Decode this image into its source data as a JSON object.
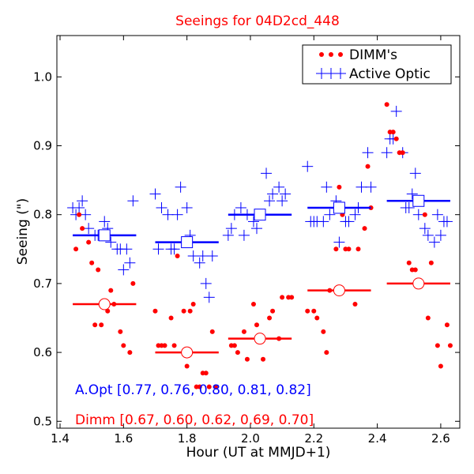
{
  "chart_data": {
    "type": "scatter",
    "title": "Seeings for 04D2cd_448",
    "xlabel": "Hour (UT at MMJD+1)",
    "ylabel": "Seeing (\")",
    "xlim": [
      1.39,
      2.66
    ],
    "ylim": [
      0.49,
      1.06
    ],
    "x_ticks": [
      "1.4",
      "1.6",
      "1.8",
      "2.0",
      "2.2",
      "2.4",
      "2.6"
    ],
    "y_ticks": [
      "0.5",
      "0.6",
      "0.7",
      "0.8",
      "0.9",
      "1.0"
    ],
    "grid": false,
    "legend_position": "top-right",
    "colors": {
      "dimm": "#ff0000",
      "aopt": "#0000ff",
      "title": "#ff0000"
    },
    "summary_aopt": "A.Opt [0.77, 0.76, 0.80, 0.81, 0.82]",
    "summary_dimm": "Dimm [0.67, 0.60, 0.62, 0.69, 0.70]",
    "series": [
      {
        "name": "DIMM's",
        "marker": "dot",
        "color": "#ff0000",
        "x": [
          1.45,
          1.46,
          1.47,
          1.49,
          1.5,
          1.51,
          1.52,
          1.53,
          1.55,
          1.56,
          1.57,
          1.59,
          1.6,
          1.62,
          1.63,
          1.7,
          1.71,
          1.72,
          1.73,
          1.75,
          1.76,
          1.77,
          1.79,
          1.8,
          1.81,
          1.82,
          1.83,
          1.84,
          1.85,
          1.86,
          1.87,
          1.88,
          1.89,
          1.94,
          1.95,
          1.96,
          1.98,
          1.99,
          2.01,
          2.02,
          2.03,
          2.04,
          2.06,
          2.07,
          2.09,
          2.1,
          2.12,
          2.13,
          2.18,
          2.2,
          2.21,
          2.23,
          2.24,
          2.25,
          2.27,
          2.28,
          2.29,
          2.3,
          2.31,
          2.33,
          2.34,
          2.36,
          2.37,
          2.38,
          2.43,
          2.44,
          2.45,
          2.46,
          2.47,
          2.48,
          2.5,
          2.51,
          2.52,
          2.55,
          2.56,
          2.57,
          2.59,
          2.6,
          2.62,
          2.63
        ],
        "y": [
          0.75,
          0.8,
          0.78,
          0.76,
          0.73,
          0.64,
          0.72,
          0.64,
          0.66,
          0.69,
          0.67,
          0.63,
          0.61,
          0.6,
          0.7,
          0.66,
          0.61,
          0.61,
          0.61,
          0.65,
          0.61,
          0.74,
          0.66,
          0.58,
          0.66,
          0.67,
          0.55,
          0.55,
          0.57,
          0.57,
          0.55,
          0.63,
          0.55,
          0.61,
          0.61,
          0.6,
          0.63,
          0.59,
          0.67,
          0.64,
          0.62,
          0.59,
          0.65,
          0.66,
          0.62,
          0.68,
          0.68,
          0.68,
          0.66,
          0.66,
          0.65,
          0.63,
          0.6,
          0.69,
          0.75,
          0.84,
          0.8,
          0.75,
          0.75,
          0.67,
          0.75,
          0.78,
          0.87,
          0.81,
          0.96,
          0.92,
          0.92,
          0.91,
          0.89,
          0.89,
          0.73,
          0.72,
          0.72,
          0.8,
          0.65,
          0.73,
          0.61,
          0.58,
          0.64,
          0.61
        ]
      },
      {
        "name": "Active Optic",
        "marker": "plus",
        "color": "#0000ff",
        "x": [
          1.44,
          1.45,
          1.46,
          1.47,
          1.48,
          1.49,
          1.51,
          1.52,
          1.54,
          1.55,
          1.56,
          1.58,
          1.59,
          1.6,
          1.61,
          1.62,
          1.63,
          1.7,
          1.71,
          1.72,
          1.74,
          1.75,
          1.76,
          1.77,
          1.78,
          1.8,
          1.81,
          1.82,
          1.84,
          1.85,
          1.86,
          1.87,
          1.88,
          1.93,
          1.94,
          1.95,
          1.97,
          1.98,
          1.99,
          2.01,
          2.02,
          2.03,
          2.05,
          2.06,
          2.07,
          2.09,
          2.1,
          2.11,
          2.18,
          2.19,
          2.2,
          2.21,
          2.23,
          2.24,
          2.25,
          2.27,
          2.28,
          2.29,
          2.3,
          2.31,
          2.33,
          2.34,
          2.35,
          2.37,
          2.38,
          2.43,
          2.44,
          2.45,
          2.46,
          2.48,
          2.49,
          2.5,
          2.51,
          2.52,
          2.53,
          2.55,
          2.56,
          2.58,
          2.59,
          2.6,
          2.61,
          2.62
        ],
        "y": [
          0.81,
          0.8,
          0.81,
          0.82,
          0.8,
          0.78,
          0.77,
          0.77,
          0.79,
          0.78,
          0.76,
          0.75,
          0.75,
          0.72,
          0.75,
          0.73,
          0.82,
          0.83,
          0.75,
          0.81,
          0.8,
          0.75,
          0.75,
          0.8,
          0.84,
          0.81,
          0.77,
          0.74,
          0.73,
          0.74,
          0.7,
          0.68,
          0.74,
          0.77,
          0.78,
          0.8,
          0.81,
          0.77,
          0.8,
          0.79,
          0.78,
          0.8,
          0.86,
          0.82,
          0.83,
          0.84,
          0.82,
          0.83,
          0.87,
          0.79,
          0.79,
          0.79,
          0.79,
          0.84,
          0.8,
          0.82,
          0.76,
          0.81,
          0.79,
          0.79,
          0.8,
          0.81,
          0.84,
          0.89,
          0.84,
          0.89,
          0.91,
          0.91,
          0.95,
          0.89,
          0.81,
          0.81,
          0.83,
          0.86,
          0.8,
          0.78,
          0.77,
          0.76,
          0.8,
          0.77,
          0.79,
          0.79
        ]
      }
    ],
    "bins": [
      {
        "x_center": 1.54,
        "x_range": [
          1.44,
          1.64
        ],
        "aopt_mean": 0.77,
        "dimm_mean": 0.67
      },
      {
        "x_center": 1.8,
        "x_range": [
          1.7,
          1.9
        ],
        "aopt_mean": 0.76,
        "dimm_mean": 0.6
      },
      {
        "x_center": 2.03,
        "x_range": [
          1.93,
          2.13
        ],
        "aopt_mean": 0.8,
        "dimm_mean": 0.62
      },
      {
        "x_center": 2.28,
        "x_range": [
          2.18,
          2.38
        ],
        "aopt_mean": 0.81,
        "dimm_mean": 0.69
      },
      {
        "x_center": 2.53,
        "x_range": [
          2.43,
          2.63
        ],
        "aopt_mean": 0.82,
        "dimm_mean": 0.7
      }
    ]
  }
}
